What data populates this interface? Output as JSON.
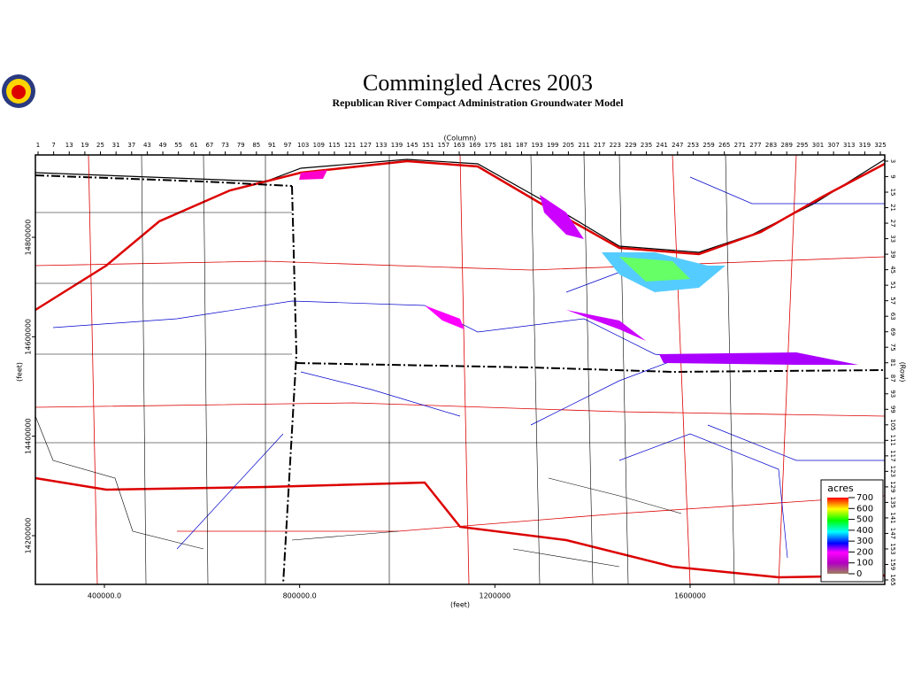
{
  "header": {
    "title": "Commingled Acres 2003",
    "subtitle": "Republican River Compact Administration Groundwater Model"
  },
  "axes": {
    "column_label": "(Column)",
    "row_label": "(Row)",
    "x_label": "(feet)",
    "y_label": "(feet)",
    "columns": [
      1,
      7,
      13,
      19,
      25,
      31,
      37,
      43,
      49,
      55,
      61,
      67,
      73,
      79,
      85,
      91,
      97,
      103,
      109,
      115,
      121,
      127,
      133,
      139,
      145,
      151,
      157,
      163,
      169,
      175,
      181,
      187,
      193,
      199,
      205,
      211,
      217,
      223,
      229,
      235,
      241,
      247,
      253,
      259,
      265,
      271,
      277,
      283,
      289,
      295,
      301,
      307,
      313,
      319,
      325
    ],
    "rows": [
      3,
      9,
      15,
      21,
      27,
      33,
      39,
      45,
      51,
      57,
      63,
      69,
      75,
      81,
      87,
      93,
      99,
      105,
      111,
      117,
      123,
      129,
      135,
      141,
      147,
      153,
      159,
      165
    ],
    "xticks": [
      {
        "value": 400000,
        "label": "400000.0"
      },
      {
        "value": 800000,
        "label": "800000.0"
      },
      1200000,
      1600000
    ],
    "yticks": [
      14800000,
      14600000,
      14400000,
      14200000
    ]
  },
  "legend": {
    "title": "acres",
    "ticks": [
      700,
      600,
      500,
      400,
      300,
      200,
      100,
      0
    ]
  }
}
